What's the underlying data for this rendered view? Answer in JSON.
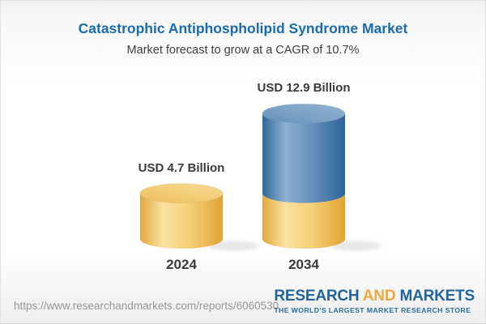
{
  "header": {
    "title": "Catastrophic Antiphospholipid Syndrome Market",
    "subtitle": "Market forecast to grow at a CAGR of 10.7%"
  },
  "chart_data": {
    "type": "bar",
    "subtype": "3d-cylinder-stacked",
    "title": "Catastrophic Antiphospholipid Syndrome Market",
    "annotation": "Market forecast to grow at a CAGR of 10.7%",
    "categories": [
      "2024",
      "2034"
    ],
    "values": [
      4.7,
      12.9
    ],
    "unit": "USD Billion",
    "cagr_percent": 10.7,
    "value_labels": [
      "USD 4.7 Billion",
      "USD 12.9 Billion"
    ],
    "bars": [
      {
        "category": "2024",
        "value": 4.7,
        "segments": [
          {
            "value": 4.7,
            "color_key": "base"
          }
        ]
      },
      {
        "category": "2034",
        "value": 12.9,
        "segments": [
          {
            "value": 4.7,
            "color_key": "base"
          },
          {
            "value": 8.2,
            "color_key": "growth"
          }
        ]
      }
    ],
    "colors": {
      "base": "#F2C566",
      "growth": "#4A7EAD",
      "label_text": "#3B3B3B",
      "title_text": "#1C6BAD"
    },
    "legend": "none",
    "axes": "none",
    "xlabel": "",
    "ylabel": ""
  },
  "footer": {
    "url": "https://www.researchandmarkets.com/reports/6060530",
    "logo": {
      "research": "RESEARCH",
      "and": "AND",
      "markets": "MARKETS",
      "tagline": "THE WORLD'S LARGEST MARKET RESEARCH STORE"
    }
  }
}
